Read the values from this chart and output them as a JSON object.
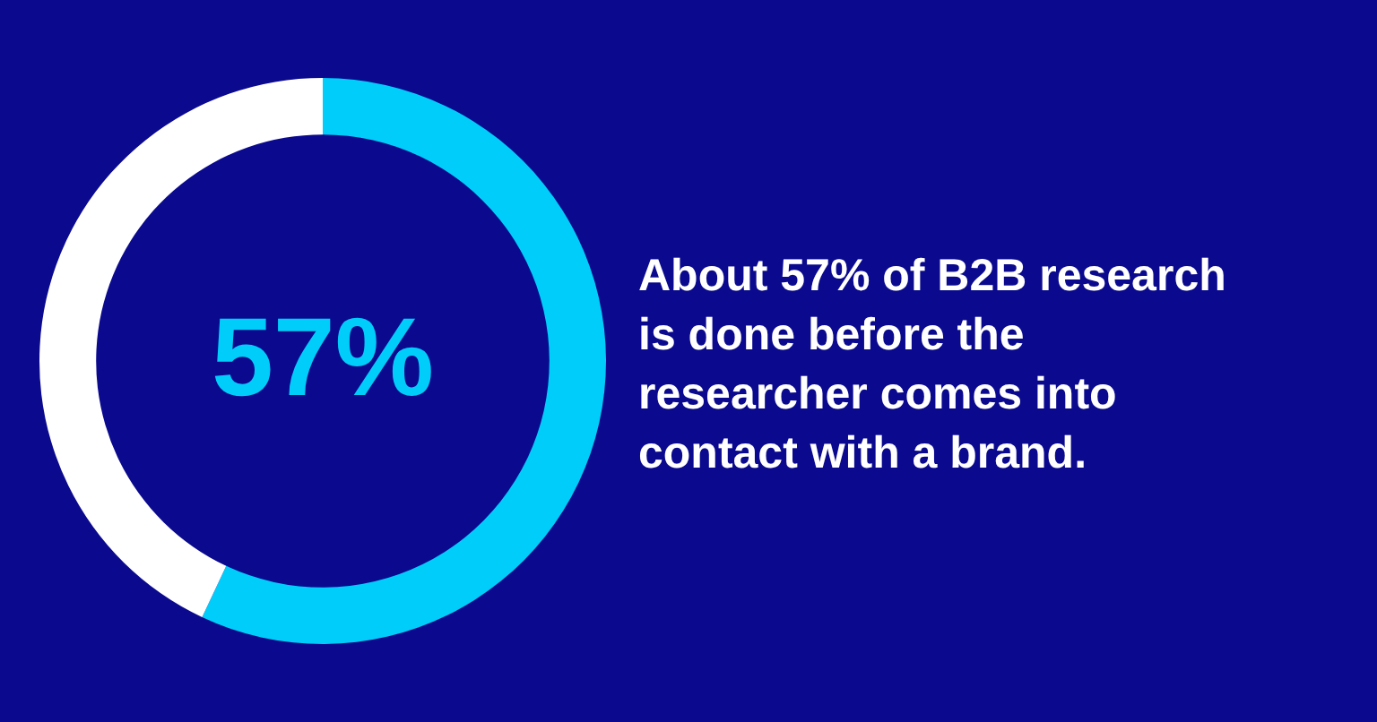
{
  "chart_data": {
    "type": "donut",
    "categories": [
      null,
      null
    ],
    "values": [
      57,
      43
    ],
    "colors": [
      "#00cdfa",
      "#ffffff"
    ],
    "value_labels": [
      "57%",
      null
    ],
    "legend": false,
    "annotations": [
      "About 57% of B2B research is done before the researcher comes into contact with a brand."
    ]
  }
}
